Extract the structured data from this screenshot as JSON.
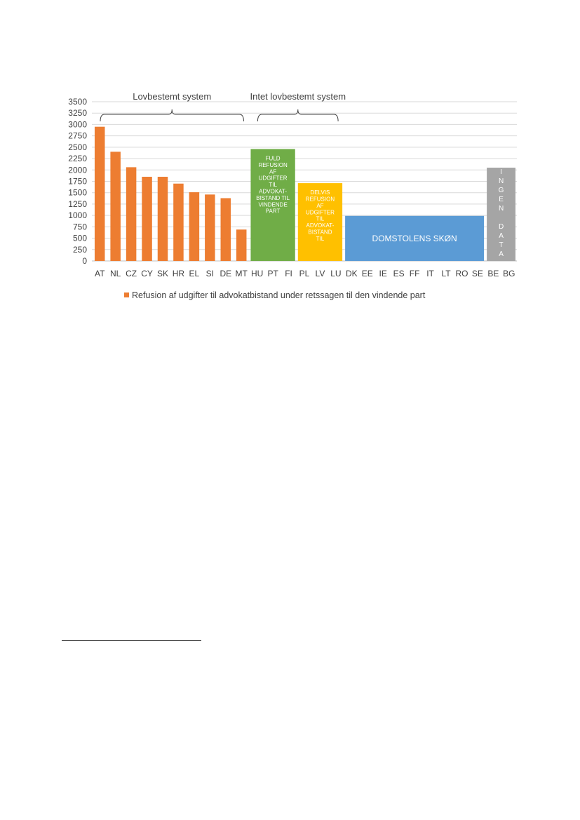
{
  "chart_data": {
    "type": "bar",
    "categories": [
      "AT",
      "NL",
      "CZ",
      "CY",
      "SK",
      "HR",
      "EL",
      "SI",
      "DE",
      "MT",
      "HU",
      "PT",
      "FI",
      "PL",
      "LV",
      "LU",
      "DK",
      "EE",
      "IE",
      "ES",
      "FF",
      "IT",
      "LT",
      "RO",
      "SE",
      "BE",
      "BG"
    ],
    "series": [
      {
        "name": "Refusion af udgifter til advokatbistand under retssagen til den vindende part",
        "color": "#ED7D31",
        "values": [
          2950,
          2400,
          2060,
          1850,
          1850,
          1700,
          1510,
          1460,
          1380,
          690,
          null,
          null,
          null,
          null,
          null,
          null,
          null,
          null,
          null,
          null,
          null,
          null,
          null,
          null,
          null,
          null,
          null
        ]
      }
    ],
    "ylim": [
      0,
      3500
    ],
    "yticks": [
      "3500",
      "3250",
      "3000",
      "2750",
      "2500",
      "2250",
      "2000",
      "1750",
      "1500",
      "1250",
      "1000",
      "750",
      "500",
      "250",
      "0"
    ],
    "grid": true,
    "legend_position": "bottom",
    "group_labels": [
      {
        "text": "Lovbestemt system",
        "from": "AT",
        "to": "MT"
      },
      {
        "text": "Intet lovbestemt system",
        "from": "HU",
        "to": "LU"
      }
    ],
    "category_blocks": [
      {
        "from": "HU",
        "to": "FI",
        "height": 2460,
        "color": "#70AD47",
        "lines": [
          "FULD",
          "REFUSION",
          "AF",
          "UDGIFTER",
          "TIL",
          "ADVOKAT-",
          "BISTAND TIL",
          "VINDENDE",
          "PART"
        ]
      },
      {
        "from": "PL",
        "to": "LU",
        "height": 1710,
        "color": "#FFC000",
        "lines": [
          "DELVIS",
          "REFUSION",
          "AF",
          "UDGIFTER",
          "TIL",
          "ADVOKAT-",
          "BISTAND",
          "TIL"
        ]
      },
      {
        "from": "DK",
        "to": "SE",
        "height": 990,
        "color": "#5B9BD5",
        "lines": [
          "DOMSTOLENS SKØN"
        ]
      },
      {
        "from": "BE",
        "to": "BG",
        "height": 2050,
        "color": "#A5A5A5",
        "lines": [
          "I",
          "N",
          "G",
          "E",
          "N",
          "",
          "D",
          "A",
          "T",
          "A"
        ]
      }
    ]
  }
}
